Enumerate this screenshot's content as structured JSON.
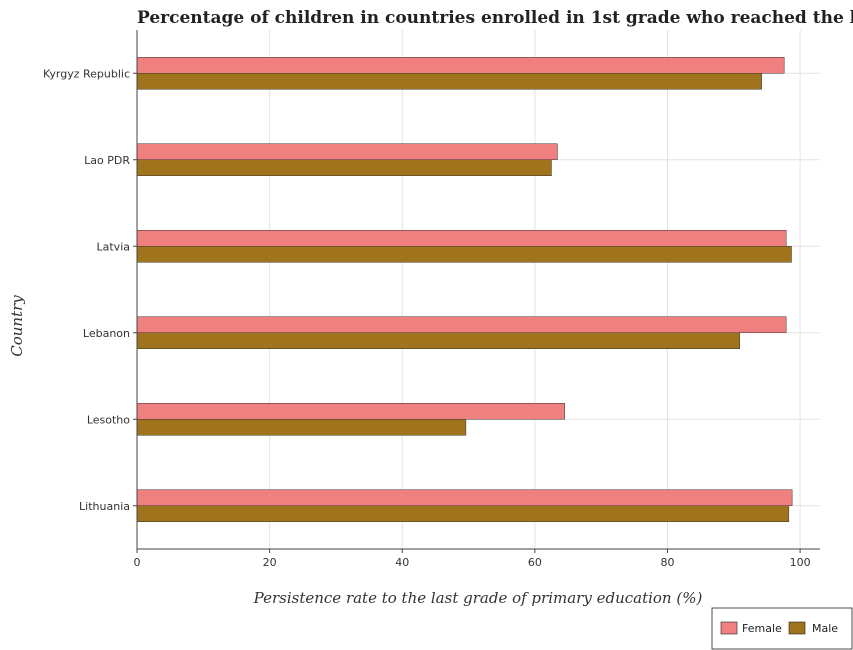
{
  "chart_data": {
    "type": "bar",
    "orientation": "horizontal",
    "title": "Percentage of children in countries enrolled in 1st grade who reached the last grade of primary education",
    "xlabel": "Persistence rate to the last grade of primary education (%)",
    "ylabel": "Country",
    "categories": [
      "Kyrgyz Republic",
      "Lao PDR",
      "Latvia",
      "Lebanon",
      "Lesotho",
      "Lithuania"
    ],
    "series": [
      {
        "name": "Female",
        "color": "#f08080",
        "values": [
          97.6,
          63.4,
          97.9,
          97.9,
          64.5,
          98.8
        ]
      },
      {
        "name": "Male",
        "color": "#a0741d",
        "values": [
          94.2,
          62.5,
          98.7,
          90.9,
          49.6,
          98.3
        ]
      }
    ],
    "xlim": [
      0,
      103
    ],
    "xticks": [
      0,
      20,
      40,
      60,
      80,
      100
    ],
    "grid": true,
    "legend_position": "bottom-right"
  }
}
